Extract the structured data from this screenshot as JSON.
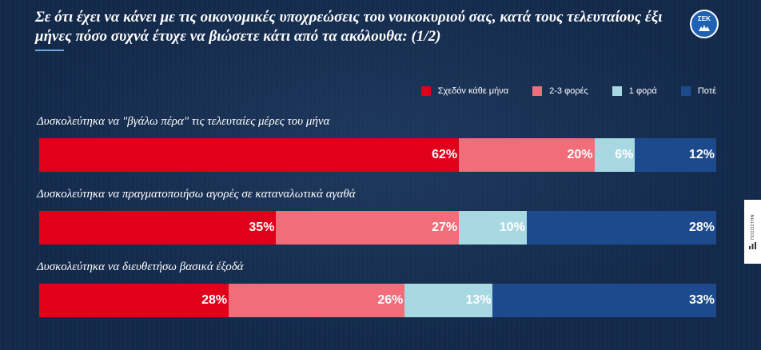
{
  "title": "Σε ότι έχει να κάνει με τις οικονομικές υποχρεώσεις του νοικοκυριού σας, κατά τους τελευταίους έξι μήνες πόσο συχνά έτυχε να βιώσετε κάτι από τα ακόλουθα: (1/2)",
  "logo": {
    "text": "ΣΕΚ",
    "icon": "sek-logo-icon"
  },
  "side_tab": {
    "text": "ΠΟΣΟΣΤΗΝ",
    "icon": "chart-icon"
  },
  "colors": {
    "background": "#13294a",
    "accent": "#6fa8dc"
  },
  "chart_data": {
    "type": "bar",
    "orientation": "horizontal",
    "stacked": true,
    "normalized": true,
    "legend_position": "top-right",
    "categories": [
      "Δυσκολεύτηκα να \"βγάλω πέρα\" τις τελευταίες μέρες του μήνα",
      "Δυσκολεύτηκα να πραγματοποιήσω αγορές σε καταναλωτικά αγαθά",
      "Δυσκολεύτηκα να διευθετήσω βασικά έξοδά"
    ],
    "series": [
      {
        "name": "Σχεδόν κάθε μήνα",
        "color": "#e1001a",
        "values": [
          62,
          35,
          28
        ],
        "labels": [
          "62%",
          "35%",
          "28%"
        ]
      },
      {
        "name": "2-3 φορές",
        "color": "#f26d7a",
        "values": [
          20,
          27,
          26
        ],
        "labels": [
          "20%",
          "27%",
          "26%"
        ]
      },
      {
        "name": "1 φορά",
        "color": "#a8d8e2",
        "values": [
          6,
          10,
          13
        ],
        "labels": [
          "6%",
          "10%",
          "13%"
        ]
      },
      {
        "name": "Ποτέ",
        "color": "#1c4a8c",
        "values": [
          12,
          28,
          33
        ],
        "labels": [
          "12%",
          "28%",
          "33%"
        ]
      }
    ]
  }
}
